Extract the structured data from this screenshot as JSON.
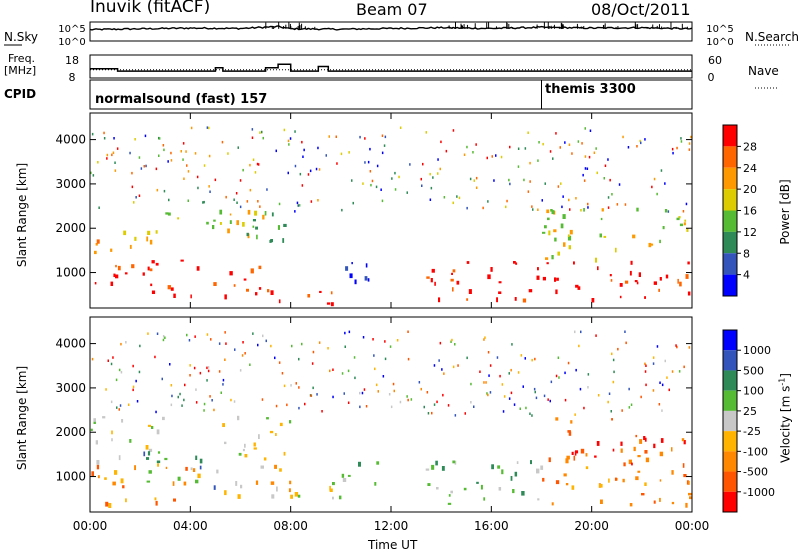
{
  "header": {
    "station": "Inuvik (fitACF)",
    "beam": "Beam 07",
    "date": "08/Oct/2011"
  },
  "noise_panel": {
    "left_label": "N.Sky",
    "right_label": "N.Search",
    "ytick_top": "10^5",
    "ytick_bottom": "10^0"
  },
  "freq_panel": {
    "left_label": "Freq.",
    "left_units": "[MHz]",
    "right_label": "Nave",
    "left_ticks": [
      "18",
      "8"
    ],
    "right_ticks": [
      "60",
      "0"
    ]
  },
  "cpid": {
    "label": "CPID",
    "modes": [
      {
        "name": "normalsound (fast) 157",
        "start_h": 0
      },
      {
        "name": "themis 3300",
        "start_h": 18
      }
    ]
  },
  "colors": {
    "power": [
      "#0000ff",
      "#3355bb",
      "#2e8b57",
      "#55bb33",
      "#ddcc00",
      "#ff9900",
      "#ff6600",
      "#ff0000"
    ],
    "velocity": [
      "#0000ff",
      "#3355bb",
      "#2e8b57",
      "#55bb33",
      "#c8c8c8",
      "#ffb400",
      "#ff8800",
      "#ff5500",
      "#ff0000"
    ]
  },
  "chart_data": [
    {
      "type": "line",
      "title": "N.Sky / N.Search",
      "x": [
        0,
        2,
        4,
        6,
        7.5,
        8,
        10,
        12,
        14,
        16,
        18,
        20,
        22,
        24
      ],
      "series": [
        {
          "name": "N.Sky",
          "values": [
            3,
            3.2,
            3.4,
            3.3,
            3.8,
            3.2,
            3.1,
            3.3,
            3.5,
            3.3,
            3.6,
            3.4,
            3.5,
            3.2
          ]
        }
      ],
      "ylabel": "N.Sky",
      "ylim": [
        0,
        5
      ],
      "yscale": "log"
    },
    {
      "type": "line",
      "title": "Freq / Nave",
      "x": [
        0,
        1,
        1.1,
        4.8,
        5,
        5.3,
        6.7,
        7,
        7.5,
        8,
        9,
        9.1,
        9.5,
        13,
        18,
        24
      ],
      "series": [
        {
          "name": "Freq. [MHz]",
          "values": [
            12,
            12,
            11,
            11,
            12.5,
            11,
            11,
            12.5,
            14,
            11,
            11,
            13,
            11,
            11,
            11,
            11
          ]
        },
        {
          "name": "Nave",
          "values": [
            20,
            20,
            20,
            20,
            20,
            20,
            20,
            20,
            20,
            20,
            20,
            20,
            20,
            20,
            20,
            20
          ]
        }
      ],
      "ylim": [
        8,
        18
      ]
    },
    {
      "type": "heatmap",
      "title": "Power",
      "xlabel": "Time UT",
      "ylabel": "Slant Range [km]",
      "colorbar_label": "Power [dB]",
      "colorbar_ticks": [
        "4",
        "8",
        "12",
        "16",
        "20",
        "24",
        "28"
      ],
      "x_ticks": [
        "00:00",
        "04:00",
        "08:00",
        "12:00",
        "16:00",
        "20:00",
        "00:00"
      ],
      "y_ticks": [
        "1000",
        "2000",
        "3000",
        "4000"
      ],
      "xlim": [
        0,
        24
      ],
      "ylim": [
        200,
        4600
      ],
      "patches": [
        {
          "t0": 0,
          "t1": 7.5,
          "r0": 500,
          "r1": 1300,
          "level": 7
        },
        {
          "t0": 0,
          "t1": 2.5,
          "r0": 1300,
          "r1": 2000,
          "level": 5
        },
        {
          "t0": 2.5,
          "t1": 7,
          "r0": 1800,
          "r1": 2500,
          "level": 4
        },
        {
          "t0": 7.5,
          "t1": 10,
          "r0": 250,
          "r1": 700,
          "level": 7
        },
        {
          "t0": 10,
          "t1": 12,
          "r0": 800,
          "r1": 1400,
          "level": 1
        },
        {
          "t0": 13,
          "t1": 18,
          "r0": 400,
          "r1": 1300,
          "level": 7
        },
        {
          "t0": 18,
          "t1": 24,
          "r0": 400,
          "r1": 1300,
          "level": 7
        },
        {
          "t0": 18,
          "t1": 24,
          "r0": 1300,
          "r1": 2500,
          "level": 4
        },
        {
          "t0": 6,
          "t1": 8,
          "r0": 1300,
          "r1": 2400,
          "level": 3
        }
      ]
    },
    {
      "type": "heatmap",
      "title": "Velocity",
      "xlabel": "Time UT",
      "ylabel": "Slant Range [km]",
      "colorbar_label": "Velocity [m s^-1]",
      "colorbar_ticks": [
        "1000",
        "500",
        "100",
        "25",
        "-25",
        "-100",
        "-500",
        "-1000"
      ],
      "x_ticks": [
        "00:00",
        "04:00",
        "08:00",
        "12:00",
        "16:00",
        "20:00",
        "00:00"
      ],
      "y_ticks": [
        "1000",
        "2000",
        "3000",
        "4000"
      ],
      "xlim": [
        0,
        24
      ],
      "ylim": [
        200,
        4600
      ],
      "patches": [
        {
          "t0": 0,
          "t1": 4,
          "r0": 400,
          "r1": 1300,
          "level": 6
        },
        {
          "t0": 0,
          "t1": 3,
          "r0": 1300,
          "r1": 2400,
          "level": 4
        },
        {
          "t0": 2,
          "t1": 5,
          "r0": 800,
          "r1": 1600,
          "level": 2
        },
        {
          "t0": 4,
          "t1": 8,
          "r0": 500,
          "r1": 1300,
          "level": 5
        },
        {
          "t0": 5,
          "t1": 8,
          "r0": 1400,
          "r1": 2400,
          "level": 4
        },
        {
          "t0": 8,
          "t1": 10,
          "r0": 300,
          "r1": 800,
          "level": 4
        },
        {
          "t0": 9.5,
          "t1": 11.5,
          "r0": 800,
          "r1": 1400,
          "level": 3
        },
        {
          "t0": 13,
          "t1": 18,
          "r0": 400,
          "r1": 1400,
          "level": 3
        },
        {
          "t0": 18,
          "t1": 24,
          "r0": 400,
          "r1": 1300,
          "level": 6
        },
        {
          "t0": 18,
          "t1": 24,
          "r0": 1300,
          "r1": 2400,
          "level": 7
        }
      ]
    }
  ]
}
